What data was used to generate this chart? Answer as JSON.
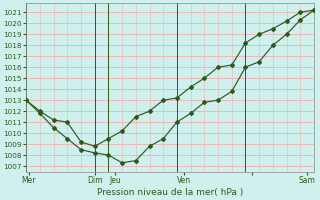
{
  "xlabel": "Pression niveau de la mer( hPa )",
  "ylim": [
    1006.5,
    1021.8
  ],
  "yticks": [
    1007,
    1008,
    1009,
    1010,
    1011,
    1012,
    1013,
    1014,
    1015,
    1016,
    1017,
    1018,
    1019,
    1020,
    1021
  ],
  "background_color": "#d0f0ee",
  "grid_color_h": "#f0b0b0",
  "grid_color_v": "#f0b0b0",
  "line_color": "#2d5a1e",
  "vline_positions": [
    0.0,
    5.0,
    6.0,
    11.0,
    16.0,
    21.0
  ],
  "xlim": [
    0,
    21
  ],
  "day_positions": [
    0.2,
    5.0,
    6.5,
    11.5,
    16.5,
    20.5
  ],
  "day_labels": [
    "Mer",
    "Dim",
    "Jeu",
    "Ven",
    "",
    "Sam"
  ],
  "series1_x": [
    0,
    1,
    2,
    3,
    4,
    5,
    6,
    7,
    8,
    9,
    10,
    11,
    12,
    13,
    14,
    15,
    16,
    17,
    18,
    19,
    20,
    21
  ],
  "series1_y": [
    1013,
    1011.8,
    1010.5,
    1009.5,
    1008.5,
    1008.2,
    1008.0,
    1007.3,
    1007.5,
    1008.8,
    1009.5,
    1011.0,
    1011.8,
    1012.8,
    1013.0,
    1013.8,
    1016.0,
    1016.5,
    1018.0,
    1019.0,
    1020.3,
    1021.2
  ],
  "series2_x": [
    0,
    1,
    2,
    3,
    4,
    5,
    6,
    7,
    8,
    9,
    10,
    11,
    12,
    13,
    14,
    15,
    16,
    17,
    18,
    19,
    20,
    21
  ],
  "series2_y": [
    1013,
    1012.0,
    1011.2,
    1011.0,
    1009.2,
    1008.8,
    1009.5,
    1010.2,
    1011.5,
    1012.0,
    1013.0,
    1013.2,
    1014.2,
    1015.0,
    1016.0,
    1016.2,
    1018.2,
    1019.0,
    1019.5,
    1020.2,
    1021.0,
    1021.2
  ],
  "xlabel_fontsize": 6.5,
  "ytick_fontsize": 5.2,
  "xtick_fontsize": 5.5
}
